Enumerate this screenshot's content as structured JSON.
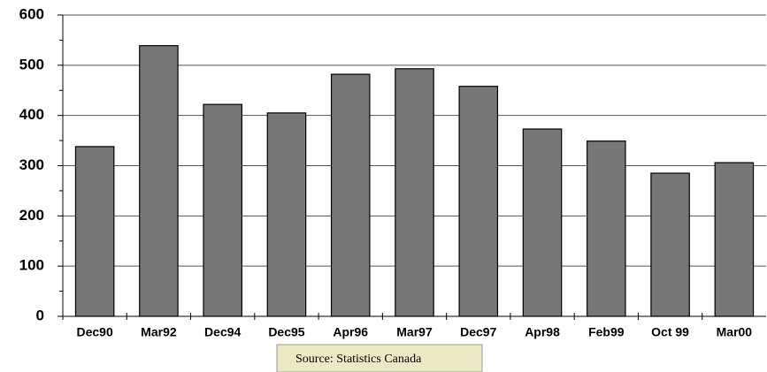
{
  "chart_data": {
    "type": "bar",
    "categories": [
      "Dec90",
      "Mar92",
      "Dec94",
      "Dec95",
      "Apr96",
      "Mar97",
      "Dec97",
      "Apr98",
      "Feb99",
      "Oct 99",
      "Mar00"
    ],
    "values": [
      338,
      539,
      422,
      405,
      482,
      493,
      458,
      373,
      349,
      285,
      306
    ],
    "color": "#777777",
    "ylim": [
      0,
      600
    ],
    "yticks": [
      0,
      100,
      200,
      300,
      400,
      500,
      600
    ],
    "grid": true,
    "source": "Source: Statistics Canada"
  }
}
